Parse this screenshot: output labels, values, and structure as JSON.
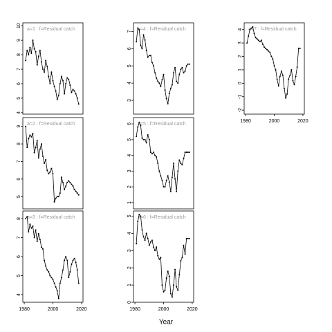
{
  "xlabel": "Year",
  "chart_data": [
    {
      "type": "line",
      "title": "a=1 : f=Residual catch",
      "color": "#000000",
      "x": [
        1981,
        1982,
        1983,
        1984,
        1985,
        1986,
        1987,
        1988,
        1989,
        1990,
        1991,
        1992,
        1993,
        1994,
        1995,
        1996,
        1997,
        1998,
        1999,
        2000,
        2001,
        2002,
        2003,
        2004,
        2005,
        2006,
        2007,
        2008,
        2009,
        2010,
        2011,
        2012,
        2013,
        2014,
        2015,
        2016,
        2017,
        2018
      ],
      "values": [
        7.6,
        8.3,
        8.0,
        8.5,
        8.1,
        9.0,
        8.4,
        8.2,
        7.3,
        7.9,
        8.3,
        7.5,
        7.0,
        6.8,
        7.6,
        7.2,
        6.5,
        6.0,
        6.8,
        6.2,
        5.8,
        5.5,
        4.9,
        5.2,
        6.0,
        6.5,
        6.2,
        5.3,
        6.0,
        6.4,
        6.3,
        5.9,
        5.4,
        5.6,
        5.5,
        5.3,
        5.0,
        4.6
      ],
      "xlim": [
        1979,
        2021
      ],
      "ylim": [
        3.9,
        10.2
      ],
      "yticks": [
        4,
        5,
        6,
        7,
        8,
        9,
        10
      ]
    },
    {
      "type": "line",
      "title": "a=2 : f=Residual catch",
      "color": "#000000",
      "x": [
        1981,
        1982,
        1983,
        1984,
        1985,
        1986,
        1987,
        1988,
        1989,
        1990,
        1991,
        1992,
        1993,
        1994,
        1995,
        1996,
        1997,
        1998,
        1999,
        2000,
        2001,
        2002,
        2003,
        2004,
        2005,
        2006,
        2007,
        2008,
        2009,
        2010,
        2011,
        2012,
        2013,
        2014,
        2015,
        2016,
        2017,
        2018
      ],
      "values": [
        9.0,
        7.8,
        8.3,
        8.5,
        8.4,
        8.6,
        7.5,
        7.8,
        8.2,
        7.2,
        7.7,
        8.0,
        7.3,
        6.9,
        7.1,
        6.5,
        6.3,
        6.4,
        6.6,
        6.3,
        4.7,
        4.9,
        5.0,
        5.0,
        5.2,
        6.1,
        5.8,
        5.4,
        5.6,
        5.8,
        5.9,
        5.8,
        5.7,
        5.6,
        5.4,
        5.3,
        5.2,
        5.1
      ],
      "xlim": [
        1979,
        2021
      ],
      "ylim": [
        4.3,
        9.5
      ],
      "yticks": [
        5,
        6,
        7,
        8,
        9
      ]
    },
    {
      "type": "line",
      "title": "a=3 : f=Residual catch",
      "color": "#000000",
      "x": [
        1981,
        1982,
        1983,
        1984,
        1985,
        1986,
        1987,
        1988,
        1989,
        1990,
        1991,
        1992,
        1993,
        1994,
        1995,
        1996,
        1997,
        1998,
        1999,
        2000,
        2001,
        2002,
        2003,
        2004,
        2005,
        2006,
        2007,
        2008,
        2009,
        2010,
        2011,
        2012,
        2013,
        2014,
        2015,
        2016,
        2017,
        2018
      ],
      "values": [
        8.0,
        8.1,
        7.3,
        7.7,
        7.5,
        7.6,
        7.0,
        7.4,
        6.8,
        7.2,
        6.9,
        6.5,
        6.4,
        5.8,
        5.5,
        5.3,
        5.2,
        5.0,
        4.9,
        4.8,
        4.6,
        4.4,
        4.2,
        3.8,
        4.6,
        4.9,
        5.3,
        5.8,
        6.0,
        5.8,
        4.9,
        5.2,
        5.6,
        5.8,
        5.9,
        5.7,
        5.3,
        4.6
      ],
      "xlim": [
        1979,
        2021
      ],
      "xticks": [
        1980,
        2000,
        2020
      ],
      "ylim": [
        3.6,
        8.4
      ],
      "yticks": [
        4,
        5,
        6,
        7,
        8
      ]
    },
    {
      "type": "line",
      "title": "a=4 : f=Residual catch",
      "color": "#000000",
      "x": [
        1981,
        1982,
        1983,
        1984,
        1985,
        1986,
        1987,
        1988,
        1989,
        1990,
        1991,
        1992,
        1993,
        1994,
        1995,
        1996,
        1997,
        1998,
        1999,
        2000,
        2001,
        2002,
        2003,
        2004,
        2005,
        2006,
        2007,
        2008,
        2009,
        2010,
        2011,
        2012,
        2013,
        2014,
        2015,
        2016,
        2017,
        2018
      ],
      "values": [
        6.4,
        7.2,
        7.1,
        6.2,
        6.0,
        6.8,
        6.5,
        5.9,
        5.5,
        5.6,
        5.6,
        5.2,
        5.0,
        4.6,
        4.3,
        4.1,
        4.0,
        3.8,
        4.2,
        4.5,
        3.6,
        3.1,
        2.8,
        3.4,
        3.7,
        3.9,
        4.6,
        4.9,
        4.1,
        4.0,
        4.5,
        4.8,
        4.9,
        4.6,
        4.7,
        5.0,
        5.1,
        5.1
      ],
      "xlim": [
        1979,
        2021
      ],
      "ylim": [
        2.2,
        7.5
      ],
      "yticks": [
        3,
        4,
        5,
        6,
        7
      ]
    },
    {
      "type": "line",
      "title": "a=5 : f=Residual catch",
      "color": "#000000",
      "x": [
        1981,
        1982,
        1983,
        1984,
        1985,
        1986,
        1987,
        1988,
        1989,
        1990,
        1991,
        1992,
        1993,
        1994,
        1995,
        1996,
        1997,
        1998,
        1999,
        2000,
        2001,
        2002,
        2003,
        2004,
        2005,
        2006,
        2007,
        2008,
        2009,
        2010,
        2011,
        2012,
        2013,
        2014,
        2015,
        2016,
        2017,
        2018
      ],
      "values": [
        5.2,
        5.8,
        6.1,
        5.9,
        5.1,
        5.0,
        5.0,
        4.8,
        5.3,
        5.0,
        4.2,
        4.1,
        4.2,
        4.0,
        3.9,
        3.5,
        3.0,
        2.7,
        2.4,
        2.0,
        2.0,
        2.4,
        2.7,
        2.3,
        1.7,
        2.6,
        3.5,
        2.5,
        1.7,
        3.0,
        3.7,
        3.5,
        3.4,
        3.8,
        4.2,
        4.2,
        4.2,
        4.2
      ],
      "xlim": [
        1979,
        2021
      ],
      "ylim": [
        0.6,
        6.4
      ],
      "yticks": [
        1,
        2,
        3,
        4,
        5,
        6
      ]
    },
    {
      "type": "line",
      "title": "a=6 : f=Residual catch",
      "color": "#000000",
      "x": [
        1981,
        1982,
        1983,
        1984,
        1985,
        1986,
        1987,
        1988,
        1989,
        1990,
        1991,
        1992,
        1993,
        1994,
        1995,
        1996,
        1997,
        1998,
        1999,
        2000,
        2001,
        2002,
        2003,
        2004,
        2005,
        2006,
        2007,
        2008,
        2009,
        2010,
        2011,
        2012,
        2013,
        2014,
        2015,
        2016,
        2017,
        2018
      ],
      "values": [
        3.4,
        4.7,
        5.1,
        5.0,
        4.2,
        3.8,
        3.6,
        4.0,
        3.7,
        3.3,
        3.5,
        3.6,
        3.2,
        3.0,
        3.2,
        2.7,
        2.5,
        2.6,
        1.0,
        0.6,
        0.7,
        1.4,
        1.8,
        1.5,
        0.5,
        0.3,
        1.0,
        1.9,
        0.9,
        0.7,
        1.6,
        2.4,
        2.6,
        3.3,
        2.8,
        3.7,
        3.7,
        3.7
      ],
      "xlim": [
        1979,
        2021
      ],
      "xticks": [
        1980,
        2000,
        2020
      ],
      "ylim": [
        0,
        5.3
      ],
      "yticks": [
        0,
        1,
        2,
        3,
        4,
        5
      ]
    },
    {
      "type": "line",
      "title": "a=7 : f=Residual catch",
      "color": "#000000",
      "x": [
        1981,
        1982,
        1983,
        1984,
        1985,
        1986,
        1987,
        1988,
        1989,
        1990,
        1991,
        1992,
        1993,
        1994,
        1995,
        1996,
        1997,
        1998,
        1999,
        2000,
        2001,
        2002,
        2003,
        2004,
        2005,
        2006,
        2007,
        2008,
        2009,
        2010,
        2011,
        2012,
        2013,
        2014,
        2015,
        2016,
        2017,
        2018
      ],
      "values": [
        3.0,
        3.5,
        4.0,
        4.1,
        4.2,
        3.7,
        3.4,
        3.3,
        3.2,
        3.1,
        3.2,
        2.9,
        2.7,
        2.6,
        2.5,
        2.4,
        2.3,
        2.0,
        1.8,
        1.3,
        1.0,
        0.3,
        -0.2,
        0.5,
        0.9,
        0.6,
        -0.4,
        -1.1,
        -0.8,
        0.3,
        0.6,
        1.0,
        0.2,
        -0.1,
        0.5,
        1.2,
        2.6,
        2.6
      ],
      "xlim": [
        1979,
        2021
      ],
      "xticks": [
        1980,
        2000,
        2020
      ],
      "ylim": [
        -2.3,
        4.5
      ],
      "yticks": [
        -2,
        -1,
        0,
        1,
        2,
        3,
        4
      ]
    }
  ]
}
